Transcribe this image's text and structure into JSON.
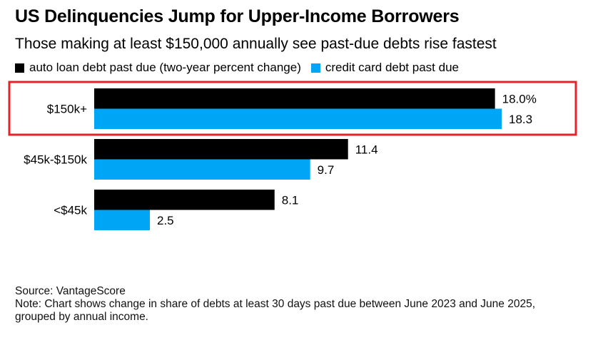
{
  "title": "US Delinquencies Jump for Upper-Income Borrowers",
  "subtitle": "Those making at least $150,000 annually see past-due debts rise fastest",
  "source": "Source: VantageScore",
  "note_line1": "Note: Chart shows change in share of debts at least 30 days past due between June 2023 and June 2025,",
  "note_line2": "grouped by annual income.",
  "colors": {
    "auto": "#000000",
    "credit": "#00a6f6",
    "highlight": "#e0242a"
  },
  "chart_data": {
    "type": "bar",
    "orientation": "horizontal",
    "categories": [
      "$150k+",
      "$45k-$150k",
      "<$45k"
    ],
    "series": [
      {
        "name": "auto loan debt past due (two-year percent change)",
        "values": [
          18.0,
          11.4,
          8.1
        ],
        "labels": [
          "18.0%",
          "11.4",
          "8.1"
        ]
      },
      {
        "name": "credit card debt past due",
        "values": [
          18.3,
          9.7,
          2.5
        ],
        "labels": [
          "18.3",
          "9.7",
          "2.5"
        ]
      }
    ],
    "xlim": [
      0,
      18.3
    ],
    "highlighted_category": "$150k+",
    "legend_position": "top-left",
    "grid": false
  }
}
